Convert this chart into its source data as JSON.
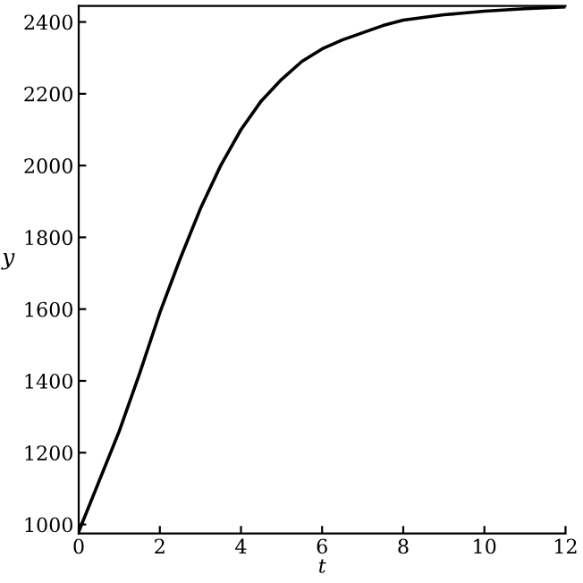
{
  "chart_data": {
    "type": "line",
    "xlabel": "t",
    "ylabel": "y",
    "x": [
      0,
      0.5,
      1,
      1.5,
      2,
      2.5,
      3,
      3.5,
      4,
      4.5,
      5,
      5.5,
      6,
      6.5,
      7,
      7.5,
      8,
      9,
      10,
      11,
      12
    ],
    "series": [
      {
        "color": "#000000",
        "values": [
          980,
          1120,
          1260,
          1420,
          1590,
          1740,
          1880,
          2000,
          2100,
          2180,
          2240,
          2290,
          2325,
          2350,
          2370,
          2390,
          2405,
          2420,
          2430,
          2437,
          2442
        ]
      }
    ],
    "xlim": [
      0,
      12
    ],
    "ylim": [
      975,
      2445
    ],
    "xticks": [
      0,
      2,
      4,
      6,
      8,
      10,
      12
    ],
    "yticks": [
      1000,
      1200,
      1400,
      1600,
      1800,
      2000,
      2200,
      2400
    ],
    "grid": false,
    "legend": false,
    "marker": "none",
    "line_style": "solid"
  }
}
